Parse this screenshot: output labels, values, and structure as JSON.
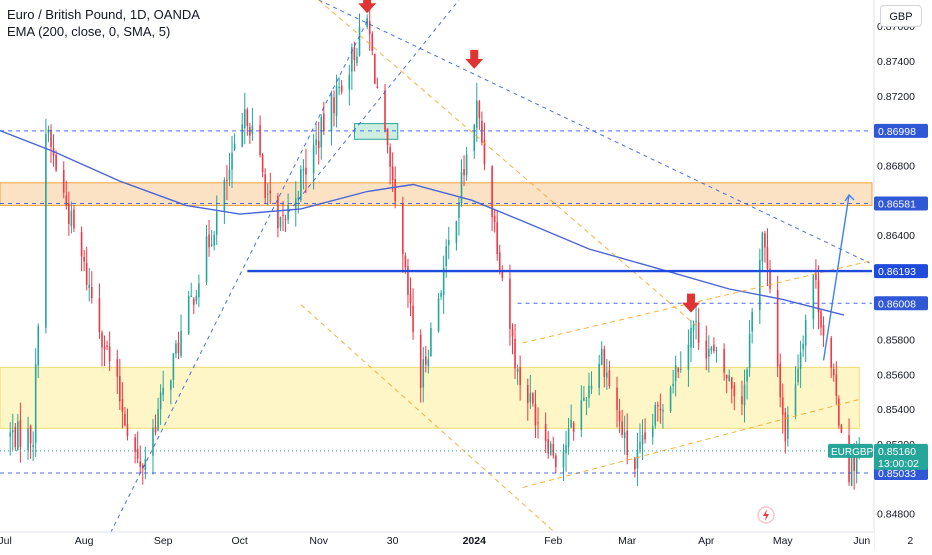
{
  "legend": {
    "symbol_line": "Euro / British Pound, 1D, OANDA",
    "indicator_line": "EMA (200, close, 0, SMA, 5)"
  },
  "currency_button": "GBP",
  "colors": {
    "up": "#26a69a",
    "down": "#f23645",
    "ema": "#4a64d8",
    "zone_orange": "#fce2c4",
    "zone_yellow": "#fff6c7",
    "dash_blue": "#2f57d6",
    "dash_orange": "#f5a623",
    "solid_level": "#1e4bdb",
    "arrow": "#e03434"
  },
  "chart_data": {
    "type": "candlestick",
    "symbol": "EURGBP",
    "timeframe": "1D",
    "ylim": [
      0.847,
      0.8775
    ],
    "x_range": [
      "2023-06-29",
      "2024-06-05"
    ],
    "x_ticks": [
      {
        "date": "2023-07-01",
        "label": "Jul"
      },
      {
        "date": "2023-08-01",
        "label": "Aug"
      },
      {
        "date": "2023-09-01",
        "label": "Sep"
      },
      {
        "date": "2023-10-01",
        "label": "Oct"
      },
      {
        "date": "2023-11-01",
        "label": "Nov"
      },
      {
        "date": "2023-11-30",
        "label": "30"
      },
      {
        "date": "2024-01-01",
        "label": "2024"
      },
      {
        "date": "2024-02-01",
        "label": "Feb"
      },
      {
        "date": "2024-03-01",
        "label": "Mar"
      },
      {
        "date": "2024-04-01",
        "label": "Apr"
      },
      {
        "date": "2024-05-01",
        "label": "May"
      },
      {
        "date": "2024-06-01",
        "label": "Jun"
      },
      {
        "date": "2024-06-20",
        "label": "2"
      }
    ],
    "y_ticks": [
      "0.87600",
      "0.87400",
      "0.87200",
      "0.86800",
      "0.86400",
      "0.85800",
      "0.85600",
      "0.85400",
      "0.85200",
      "0.84800"
    ],
    "price_labels": [
      {
        "value": 0.86998,
        "label": "0.86998"
      },
      {
        "value": 0.86581,
        "label": "0.86581"
      },
      {
        "value": 0.86193,
        "label": "0.86193"
      },
      {
        "value": 0.86008,
        "label": "0.86008"
      },
      {
        "value": 0.85033,
        "label": "0.85033"
      }
    ],
    "last_price": {
      "name": "EURGBP",
      "value": 0.8516,
      "label": "0.85160",
      "countdown": "13:00:02"
    },
    "zones": [
      {
        "kind": "resistance",
        "from": 0.8657,
        "to": 0.867,
        "start": "2023-06-29"
      },
      {
        "kind": "support",
        "from": 0.8529,
        "to": 0.8564,
        "start": "2023-06-29",
        "end": "2024-05-31"
      }
    ],
    "small_box": {
      "from": 0.8695,
      "to": 0.8704,
      "start": "2023-11-15",
      "end": "2023-12-02"
    },
    "key_points": [
      {
        "date": "2023-07-12",
        "value": 0.8525,
        "note": "low"
      },
      {
        "date": "2023-07-17",
        "value": 0.87,
        "note": "high"
      },
      {
        "date": "2023-08-23",
        "value": 0.8504,
        "note": "low"
      },
      {
        "date": "2023-10-04",
        "value": 0.871,
        "note": "high"
      },
      {
        "date": "2023-10-16",
        "value": 0.864,
        "note": "low"
      },
      {
        "date": "2023-11-20",
        "value": 0.8763,
        "note": "high"
      },
      {
        "date": "2023-12-11",
        "value": 0.8555,
        "note": "low"
      },
      {
        "date": "2024-01-02",
        "value": 0.8713,
        "note": "high"
      },
      {
        "date": "2024-01-18",
        "value": 0.856,
        "note": "low"
      },
      {
        "date": "2024-02-03",
        "value": 0.851,
        "note": "low"
      },
      {
        "date": "2024-02-20",
        "value": 0.8572,
        "note": "high"
      },
      {
        "date": "2024-03-03",
        "value": 0.8504,
        "note": "low"
      },
      {
        "date": "2024-03-27",
        "value": 0.8588,
        "note": "high"
      },
      {
        "date": "2024-04-15",
        "value": 0.8545,
        "note": "low"
      },
      {
        "date": "2024-04-23",
        "value": 0.8643,
        "note": "high"
      },
      {
        "date": "2024-05-02",
        "value": 0.8525,
        "note": "low"
      },
      {
        "date": "2024-05-13",
        "value": 0.8618,
        "note": "high"
      },
      {
        "date": "2024-05-20",
        "value": 0.856,
        "note": "low"
      },
      {
        "date": "2024-05-27",
        "value": 0.8505,
        "note": "low"
      },
      {
        "date": "2024-05-31",
        "value": 0.8516,
        "note": "close"
      }
    ],
    "ema_series": [
      {
        "date": "2023-06-29",
        "value": 0.87
      },
      {
        "date": "2023-07-20",
        "value": 0.8688
      },
      {
        "date": "2023-08-15",
        "value": 0.8671
      },
      {
        "date": "2023-09-10",
        "value": 0.8657
      },
      {
        "date": "2023-10-01",
        "value": 0.8652
      },
      {
        "date": "2023-10-25",
        "value": 0.8655
      },
      {
        "date": "2023-11-20",
        "value": 0.8665
      },
      {
        "date": "2023-12-08",
        "value": 0.8669
      },
      {
        "date": "2023-12-31",
        "value": 0.866
      },
      {
        "date": "2024-01-20",
        "value": 0.8648
      },
      {
        "date": "2024-02-15",
        "value": 0.8632
      },
      {
        "date": "2024-03-15",
        "value": 0.862
      },
      {
        "date": "2024-04-10",
        "value": 0.8609
      },
      {
        "date": "2024-05-01",
        "value": 0.8603
      },
      {
        "date": "2024-05-25",
        "value": 0.8594
      }
    ],
    "trendlines": [
      {
        "style": "dashed",
        "color": "dash_blue",
        "from": {
          "date": "2023-11-01",
          "value": 0.8775
        },
        "to": {
          "date": "2024-06-04",
          "value": 0.8624
        }
      },
      {
        "style": "dashed",
        "color": "dash_blue",
        "from": {
          "date": "2023-08-10",
          "value": 0.8465
        },
        "to": {
          "date": "2023-11-20",
          "value": 0.8763
        }
      },
      {
        "style": "dashed",
        "color": "dash_blue",
        "from": {
          "date": "2023-10-20",
          "value": 0.8653
        },
        "to": {
          "date": "2023-12-26",
          "value": 0.8775
        }
      },
      {
        "style": "dashed",
        "color": "dash_orange",
        "from": {
          "date": "2023-11-01",
          "value": 0.8775
        },
        "to": {
          "date": "2024-03-28",
          "value": 0.8588
        }
      },
      {
        "style": "dashed",
        "color": "dash_orange",
        "from": {
          "date": "2023-10-25",
          "value": 0.86
        },
        "to": {
          "date": "2024-02-01",
          "value": 0.847
        }
      },
      {
        "style": "dashed",
        "color": "dash_orange",
        "from": {
          "date": "2024-01-20",
          "value": 0.8578
        },
        "to": {
          "date": "2024-06-04",
          "value": 0.8625
        }
      },
      {
        "style": "dashed",
        "color": "dash_orange",
        "from": {
          "date": "2024-01-20",
          "value": 0.8495
        },
        "to": {
          "date": "2024-06-01",
          "value": 0.8546
        }
      },
      {
        "style": "dashed",
        "color": "dash_blue",
        "from": {
          "date": "2023-06-29",
          "value": 0.86998
        },
        "to": {
          "date": "2024-06-05",
          "value": 0.86998
        }
      },
      {
        "style": "dashed",
        "color": "dash_blue",
        "from": {
          "date": "2023-06-29",
          "value": 0.86581
        },
        "to": {
          "date": "2024-06-05",
          "value": 0.86581
        }
      },
      {
        "style": "solid",
        "color": "solid_level",
        "from": {
          "date": "2023-10-04",
          "value": 0.86193
        },
        "to": {
          "date": "2024-06-05",
          "value": 0.86193
        }
      },
      {
        "style": "dashed",
        "color": "dash_blue",
        "from": {
          "date": "2024-01-18",
          "value": 0.86008
        },
        "to": {
          "date": "2024-06-05",
          "value": 0.86008
        }
      },
      {
        "style": "dashed",
        "color": "dash_blue",
        "from": {
          "date": "2023-06-29",
          "value": 0.85033
        },
        "to": {
          "date": "2024-06-05",
          "value": 0.85033
        }
      }
    ],
    "projection": {
      "from": {
        "date": "2024-05-17",
        "value": 0.8568
      },
      "to": {
        "date": "2024-05-27",
        "value": 0.8663
      }
    },
    "markers": [
      {
        "shape": "arrow-down",
        "date": "2023-11-20",
        "value": 0.8772
      },
      {
        "shape": "arrow-down",
        "date": "2024-01-01",
        "value": 0.874
      },
      {
        "shape": "arrow-down",
        "date": "2024-03-26",
        "value": 0.86
      }
    ]
  }
}
